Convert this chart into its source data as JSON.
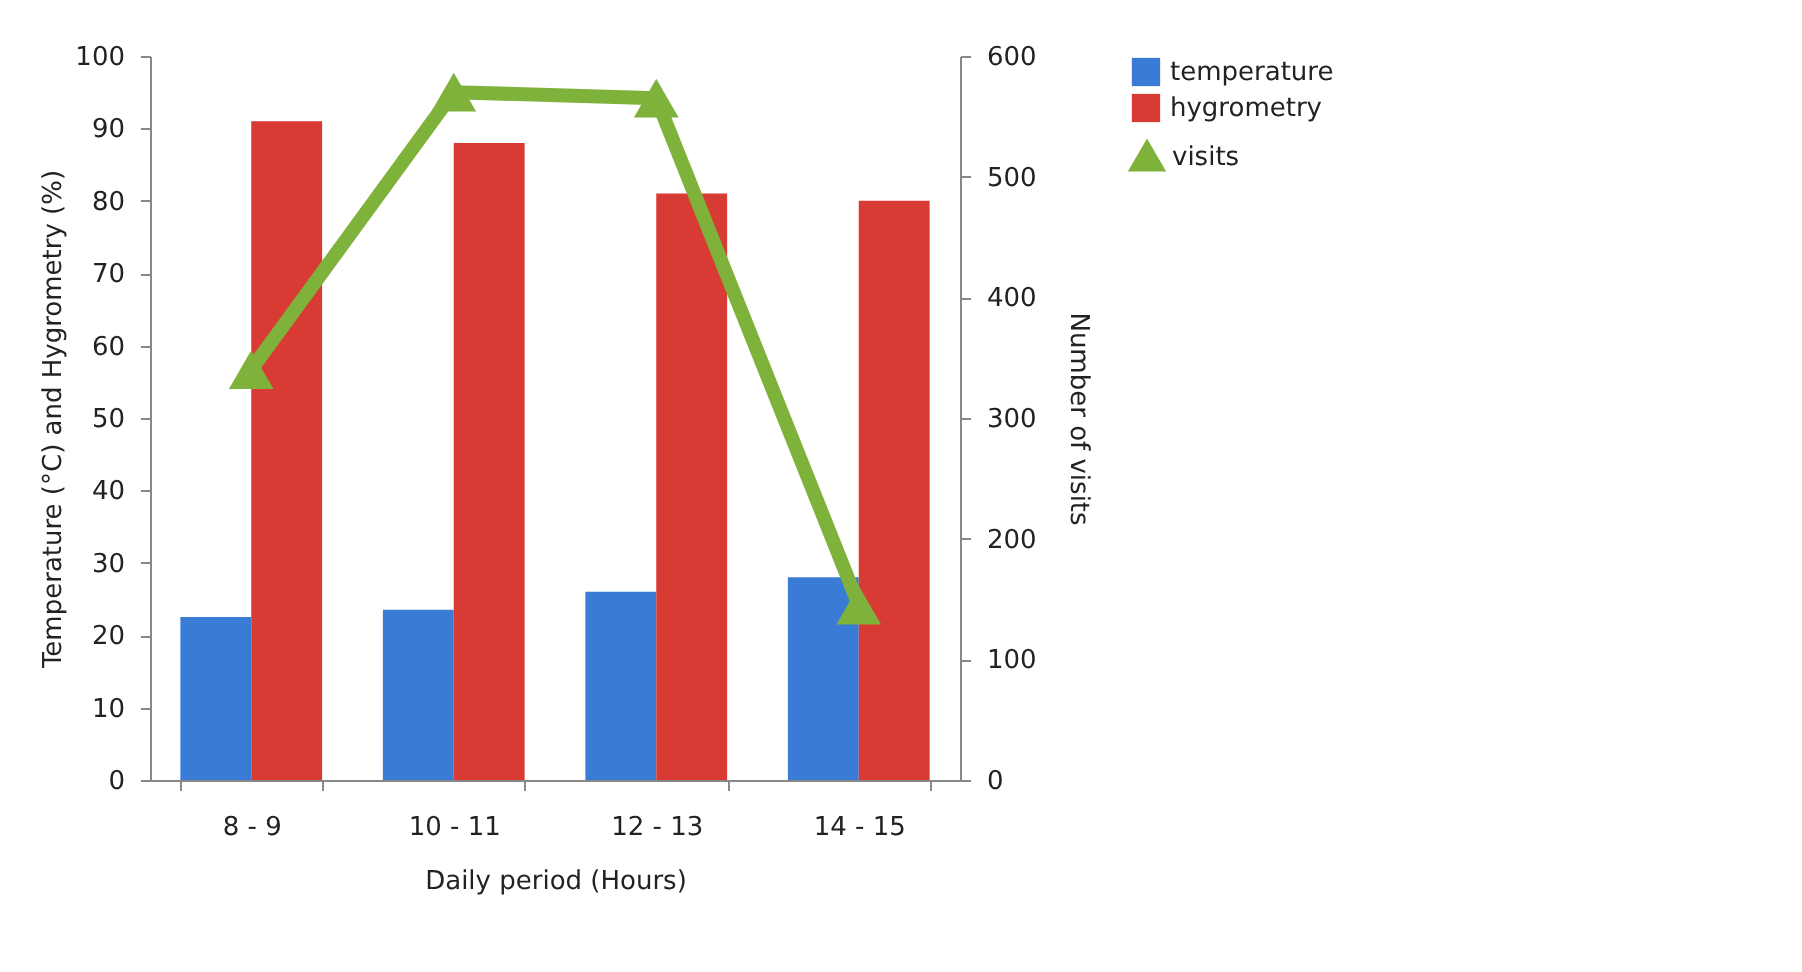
{
  "chart_data": {
    "type": "bar",
    "xlabel": "Daily period (Hours)",
    "ylabel": "Temperature (°C) and Hygrometry (%)",
    "y2label": "Number of visits",
    "categories": [
      "8 - 9",
      "10 - 11",
      "12 - 13",
      "14 - 15"
    ],
    "series": [
      {
        "name": "temperature",
        "color": "#3a7bd5",
        "values": [
          22.5,
          23.5,
          26,
          28
        ]
      },
      {
        "name": "hygrometry",
        "color": "#d83a34",
        "values": [
          91,
          88,
          81,
          80
        ]
      },
      {
        "name": "visits",
        "type": "line",
        "axis": "y2",
        "color": "#7fb23b",
        "values": [
          340,
          570,
          565,
          145
        ]
      }
    ],
    "ylim": [
      0,
      100
    ],
    "yticks": [
      0,
      10,
      20,
      30,
      40,
      50,
      60,
      70,
      80,
      90,
      100
    ],
    "y2lim": [
      0,
      600
    ],
    "y2ticks": [
      0,
      100,
      200,
      300,
      400,
      500,
      600
    ],
    "marker": "triangle",
    "legend": "right",
    "grid": false
  }
}
